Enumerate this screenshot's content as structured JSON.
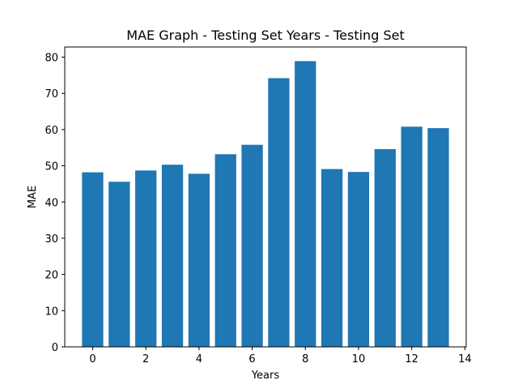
{
  "chart_data": {
    "type": "bar",
    "title": "MAE Graph - Testing Set Years - Testing Set",
    "xlabel": "Years",
    "ylabel": "MAE",
    "x": [
      0,
      1,
      2,
      3,
      4,
      5,
      6,
      7,
      8,
      9,
      10,
      11,
      12,
      13
    ],
    "values": [
      48.2,
      45.6,
      48.7,
      50.3,
      47.8,
      53.2,
      55.8,
      74.2,
      78.9,
      49.1,
      48.3,
      54.6,
      60.8,
      60.4
    ],
    "xlim": [
      -1.05,
      14.05
    ],
    "ylim": [
      0,
      82.8
    ],
    "xticks": [
      0,
      2,
      4,
      6,
      8,
      10,
      12,
      14
    ],
    "yticks": [
      0,
      10,
      20,
      30,
      40,
      50,
      60,
      70,
      80
    ],
    "bar_color": "#1f77b4",
    "grid": false,
    "legend": false
  }
}
